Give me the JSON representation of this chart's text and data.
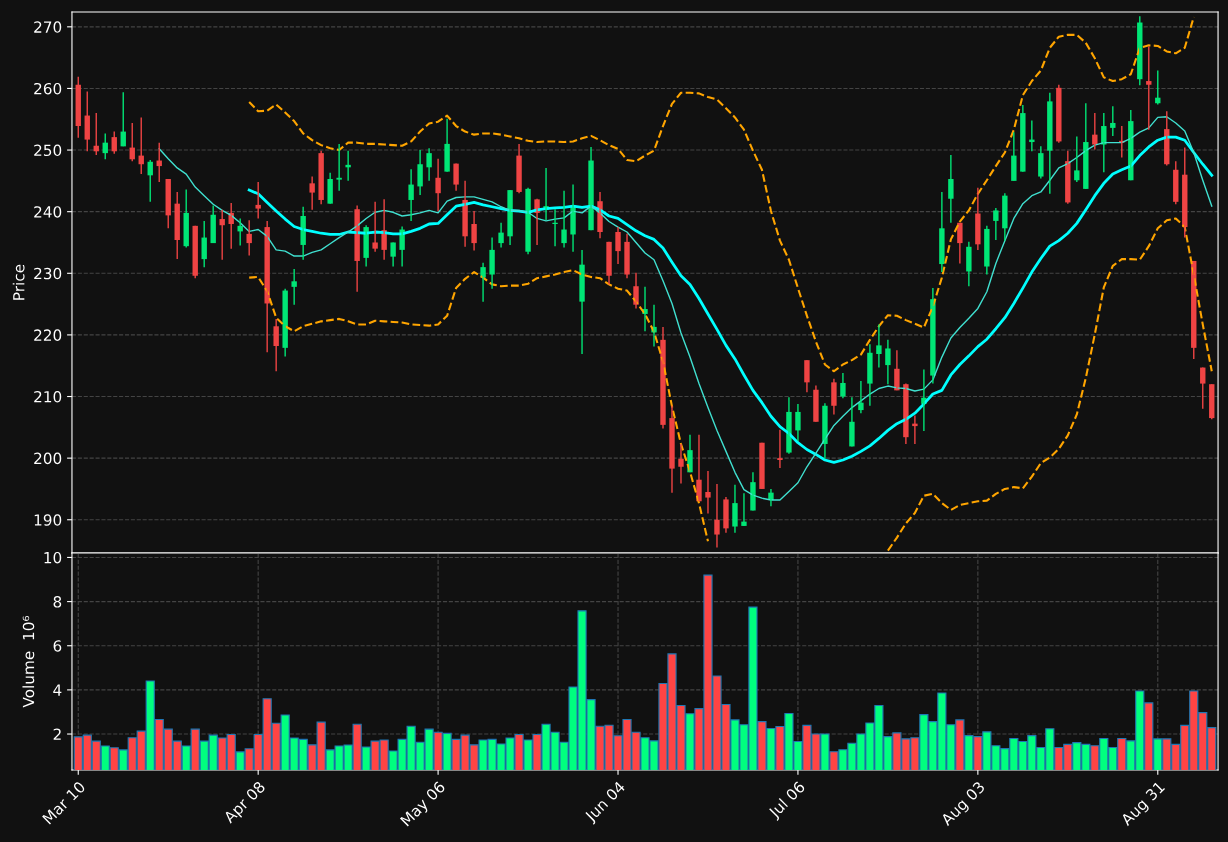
{
  "chart_data": [
    {
      "type": "candlestick",
      "ylabel": "Price",
      "ylim": [
        184.6,
        272.4
      ],
      "yticks": [
        190,
        200,
        210,
        220,
        230,
        240,
        250,
        260,
        270
      ],
      "grid": true,
      "tick_labels": "y",
      "ohlc": [
        [
          260.6,
          261.9,
          252.0,
          253.9
        ],
        [
          255.6,
          259.5,
          249.8,
          251.7
        ],
        [
          250.7,
          256.0,
          249.2,
          249.8
        ],
        [
          249.5,
          252.7,
          248.5,
          251.2
        ],
        [
          252.1,
          253.0,
          249.4,
          249.8
        ],
        [
          250.6,
          259.4,
          250.6,
          253.0
        ],
        [
          250.4,
          254.4,
          248.2,
          248.5
        ],
        [
          249.1,
          255.3,
          246.1,
          247.7
        ],
        [
          245.9,
          248.4,
          241.6,
          248.1
        ],
        [
          248.3,
          251.2,
          244.8,
          247.4
        ],
        [
          245.3,
          245.3,
          237.3,
          239.4
        ],
        [
          241.3,
          243.2,
          232.3,
          235.4
        ],
        [
          234.4,
          243.6,
          234.2,
          239.8
        ],
        [
          237.7,
          237.7,
          229.2,
          229.6
        ],
        [
          232.3,
          238.5,
          231.0,
          235.8
        ],
        [
          234.9,
          241.0,
          234.9,
          239.5
        ],
        [
          238.8,
          240.3,
          232.2,
          237.8
        ],
        [
          239.8,
          241.4,
          234.0,
          238.0
        ],
        [
          236.8,
          238.9,
          234.5,
          237.7
        ],
        [
          236.4,
          238.6,
          232.9,
          234.9
        ],
        [
          241.1,
          244.8,
          238.9,
          240.5
        ],
        [
          237.5,
          238.5,
          217.2,
          225.1
        ],
        [
          221.4,
          222.6,
          214.1,
          218.2
        ],
        [
          217.9,
          227.5,
          216.5,
          227.2
        ],
        [
          227.8,
          230.7,
          224.9,
          228.7
        ],
        [
          234.6,
          240.8,
          232.2,
          239.3
        ],
        [
          244.6,
          245.7,
          240.3,
          243.1
        ],
        [
          249.5,
          249.9,
          241.2,
          241.9
        ],
        [
          241.3,
          246.3,
          241.3,
          245.3
        ],
        [
          245.2,
          251.0,
          243.4,
          245.5
        ],
        [
          247.2,
          249.9,
          245.0,
          247.6
        ],
        [
          240.4,
          241.0,
          227.0,
          232.0
        ],
        [
          232.5,
          237.8,
          231.1,
          237.5
        ],
        [
          235.0,
          241.6,
          233.5,
          234.0
        ],
        [
          237.0,
          242.0,
          232.2,
          233.8
        ],
        [
          232.7,
          235.0,
          231.1,
          235.0
        ],
        [
          233.8,
          237.6,
          231.1,
          237.1
        ],
        [
          241.9,
          246.9,
          238.5,
          244.4
        ],
        [
          244.1,
          250.0,
          242.7,
          247.7
        ],
        [
          247.2,
          250.3,
          245.0,
          249.5
        ],
        [
          245.5,
          248.6,
          240.1,
          243.0
        ],
        [
          246.5,
          255.1,
          246.5,
          251.0
        ],
        [
          247.8,
          247.8,
          243.4,
          244.4
        ],
        [
          241.9,
          245.0,
          234.3,
          236.0
        ],
        [
          238.0,
          240.1,
          233.7,
          234.9
        ],
        [
          229.3,
          231.7,
          225.4,
          231.0
        ],
        [
          229.8,
          235.8,
          227.5,
          233.8
        ],
        [
          234.9,
          238.2,
          234.2,
          236.6
        ],
        [
          236.0,
          243.5,
          234.6,
          243.5
        ],
        [
          249.1,
          251.0,
          243.0,
          243.2
        ],
        [
          233.5,
          243.9,
          233.1,
          243.7
        ],
        [
          242.0,
          242.1,
          234.6,
          239.8
        ],
        [
          240.3,
          247.1,
          238.6,
          240.9
        ],
        [
          238.0,
          240.4,
          234.4,
          238.2
        ],
        [
          234.9,
          243.4,
          234.2,
          237.1
        ],
        [
          236.3,
          244.4,
          233.5,
          241.0
        ],
        [
          225.4,
          233.8,
          216.9,
          231.4
        ],
        [
          237.0,
          250.5,
          237.0,
          248.3
        ],
        [
          241.7,
          243.2,
          235.7,
          236.7
        ],
        [
          235.1,
          235.1,
          228.2,
          229.6
        ],
        [
          236.7,
          237.5,
          231.5,
          233.6
        ],
        [
          235.1,
          236.4,
          229.2,
          229.8
        ],
        [
          227.9,
          230.1,
          224.3,
          224.9
        ],
        [
          223.4,
          227.8,
          220.6,
          224.2
        ],
        [
          220.4,
          224.9,
          218.1,
          221.3
        ],
        [
          219.2,
          221.3,
          204.8,
          205.4
        ],
        [
          206.5,
          208.5,
          194.4,
          198.3
        ],
        [
          199.9,
          202.3,
          195.9,
          198.6
        ],
        [
          197.7,
          203.8,
          197.7,
          201.3
        ],
        [
          196.5,
          203.8,
          193.0,
          193.0
        ],
        [
          194.5,
          197.9,
          191.0,
          193.6
        ],
        [
          190.0,
          195.8,
          185.5,
          187.6
        ],
        [
          193.3,
          193.7,
          187.9,
          188.6
        ],
        [
          188.9,
          195.7,
          187.9,
          192.7
        ],
        [
          189.0,
          194.3,
          189.0,
          189.7
        ],
        [
          191.5,
          197.7,
          191.5,
          196.1
        ],
        [
          202.5,
          202.5,
          195.0,
          195.0
        ],
        [
          193.2,
          195.0,
          192.2,
          194.4
        ],
        [
          200.0,
          204.6,
          198.4,
          199.7
        ],
        [
          200.9,
          209.9,
          200.7,
          207.5
        ],
        [
          204.5,
          208.8,
          202.8,
          207.5
        ],
        [
          215.9,
          215.9,
          210.7,
          212.3
        ],
        [
          211.1,
          211.8,
          205.9,
          205.9
        ],
        [
          202.3,
          208.9,
          199.9,
          208.5
        ],
        [
          212.3,
          212.9,
          207.1,
          208.5
        ],
        [
          210.0,
          213.8,
          209.7,
          212.2
        ],
        [
          201.9,
          209.9,
          201.9,
          205.9
        ],
        [
          207.8,
          212.5,
          207.3,
          209.0
        ],
        [
          212.1,
          218.5,
          208.5,
          217.1
        ],
        [
          216.9,
          221.7,
          214.7,
          218.3
        ],
        [
          215.1,
          219.2,
          212.0,
          217.8
        ],
        [
          214.5,
          217.5,
          211.0,
          211.0
        ],
        [
          212.0,
          212.1,
          202.3,
          203.4
        ],
        [
          205.6,
          206.9,
          202.3,
          205.2
        ],
        [
          208.8,
          214.4,
          204.4,
          209.8
        ],
        [
          213.4,
          227.6,
          212.1,
          225.8
        ],
        [
          231.5,
          243.2,
          230.2,
          237.3
        ],
        [
          242.1,
          249.2,
          238.2,
          245.3
        ],
        [
          238.2,
          238.2,
          231.6,
          234.9
        ],
        [
          230.3,
          235.1,
          227.9,
          234.3
        ],
        [
          239.7,
          243.9,
          233.8,
          234.7
        ],
        [
          231.1,
          237.7,
          229.8,
          237.2
        ],
        [
          238.5,
          240.6,
          235.4,
          240.2
        ],
        [
          237.3,
          243.0,
          235.3,
          242.6
        ],
        [
          245.0,
          252.9,
          245.0,
          249.1
        ],
        [
          246.5,
          257.3,
          246.5,
          256.0
        ],
        [
          251.3,
          254.8,
          249.8,
          251.7
        ],
        [
          245.7,
          250.6,
          245.4,
          249.5
        ],
        [
          249.9,
          259.3,
          242.9,
          257.9
        ],
        [
          260.1,
          260.6,
          251.2,
          251.4
        ],
        [
          248.2,
          249.9,
          241.3,
          241.5
        ],
        [
          245.1,
          252.2,
          244.8,
          246.7
        ],
        [
          243.7,
          257.6,
          243.7,
          251.3
        ],
        [
          252.5,
          256.0,
          250.1,
          250.9
        ],
        [
          250.9,
          256.0,
          246.4,
          253.9
        ],
        [
          253.6,
          257.1,
          252.3,
          254.4
        ],
        [
          251.5,
          253.9,
          248.8,
          251.2
        ],
        [
          245.1,
          256.5,
          245.1,
          254.7
        ],
        [
          261.5,
          271.7,
          260.5,
          270.7
        ],
        [
          261.2,
          266.8,
          253.3,
          260.6
        ],
        [
          257.6,
          262.9,
          257.4,
          258.5
        ],
        [
          253.4,
          256.3,
          247.5,
          247.7
        ],
        [
          246.8,
          248.2,
          241.2,
          241.6
        ],
        [
          246.0,
          250.4,
          235.8,
          237.5
        ],
        [
          232.0,
          232.0,
          216.1,
          217.9
        ],
        [
          214.7,
          214.7,
          208.0,
          212.1
        ],
        [
          212.0,
          212.0,
          206.3,
          206.5
        ]
      ],
      "colors": [
        "#ef4444",
        "#ef4444",
        "#ef4444",
        "#00e676",
        "#ef4444",
        "#00e676",
        "#ef4444",
        "#ef4444",
        "#00e676",
        "#ef4444",
        "#ef4444",
        "#ef4444",
        "#00e676",
        "#ef4444",
        "#00e676",
        "#00e676",
        "#ef4444",
        "#ef4444",
        "#00e676",
        "#ef4444",
        "#ef4444",
        "#ef4444",
        "#ef4444",
        "#00e676",
        "#00e676",
        "#00e676",
        "#ef4444",
        "#ef4444",
        "#00e676",
        "#00e676",
        "#00e676",
        "#ef4444",
        "#00e676",
        "#ef4444",
        "#ef4444",
        "#00e676",
        "#00e676",
        "#00e676",
        "#00e676",
        "#00e676",
        "#ef4444",
        "#00e676",
        "#ef4444",
        "#ef4444",
        "#ef4444",
        "#00e676",
        "#00e676",
        "#00e676",
        "#00e676",
        "#ef4444",
        "#00e676",
        "#ef4444",
        "#00e676",
        "#00e676",
        "#00e676",
        "#00e676",
        "#00e676",
        "#00e676",
        "#ef4444",
        "#ef4444",
        "#ef4444",
        "#ef4444",
        "#ef4444",
        "#00e676",
        "#00e676",
        "#ef4444",
        "#ef4444",
        "#ef4444",
        "#00e676",
        "#ef4444",
        "#ef4444",
        "#ef4444",
        "#ef4444",
        "#00e676",
        "#00e676",
        "#00e676",
        "#ef4444",
        "#00e676",
        "#ef4444",
        "#00e676",
        "#00e676",
        "#ef4444",
        "#ef4444",
        "#00e676",
        "#ef4444",
        "#00e676",
        "#00e676",
        "#00e676",
        "#00e676",
        "#00e676",
        "#00e676",
        "#ef4444",
        "#ef4444",
        "#ef4444",
        "#00e676",
        "#00e676",
        "#00e676",
        "#00e676",
        "#ef4444",
        "#00e676",
        "#ef4444",
        "#00e676",
        "#00e676",
        "#00e676",
        "#00e676",
        "#00e676",
        "#00e676",
        "#00e676",
        "#00e676",
        "#ef4444",
        "#ef4444",
        "#00e676",
        "#00e676",
        "#ef4444",
        "#00e676",
        "#00e676",
        "#ef4444",
        "#00e676",
        "#00e676",
        "#ef4444",
        "#00e676",
        "#ef4444",
        "#ef4444",
        "#ef4444",
        "#ef4444",
        "#ef4444",
        "#ef4444"
      ],
      "series": [
        {
          "type": "line",
          "color": "#00ffff",
          "line_style": "solid",
          "values": [
            null,
            null,
            null,
            null,
            null,
            null,
            null,
            null,
            null,
            null,
            null,
            null,
            null,
            null,
            null,
            null,
            null,
            null,
            null,
            243.5,
            242.9,
            241.5,
            240.1,
            238.8,
            237.6,
            237.1,
            236.8,
            236.5,
            236.3,
            236.3,
            236.7,
            236.6,
            236.5,
            236.7,
            236.6,
            236.4,
            236.4,
            236.8,
            237.3,
            238.0,
            238.1,
            239.5,
            240.9,
            241.2,
            241.5,
            241.1,
            240.8,
            240.5,
            240.2,
            240.1,
            239.9,
            240.3,
            240.5,
            240.6,
            240.7,
            240.9,
            240.7,
            240.9,
            240.3,
            239.3,
            238.9,
            237.9,
            236.9,
            236.1,
            235.5,
            234.1,
            231.8,
            229.6,
            228.2,
            225.9,
            223.4,
            220.9,
            218.3,
            216.1,
            213.5,
            211.0,
            209.0,
            206.8,
            205.1,
            204.0,
            202.5,
            201.4,
            200.6,
            199.7,
            199.3,
            199.7,
            200.3,
            201.1,
            202.0,
            203.2,
            204.5,
            205.6,
            206.3,
            207.3,
            208.8,
            210.4,
            211.0,
            213.5,
            215.2,
            216.6,
            218.1,
            219.3,
            221.0,
            222.8,
            225.1,
            227.6,
            230.2,
            232.4,
            234.4,
            235.3,
            236.5,
            238.1,
            240.3,
            242.6,
            244.6,
            246.1,
            246.8,
            247.4,
            249.1,
            250.5,
            251.6,
            252.1,
            252.1,
            251.6,
            249.6,
            247.7,
            245.9
          ]
        },
        {
          "type": "line",
          "color": "#40e0d0",
          "line_style": "solid",
          "values": [
            null,
            null,
            null,
            null,
            null,
            null,
            null,
            null,
            null,
            250.2,
            248.6,
            247.1,
            246.1,
            244.0,
            242.6,
            241.2,
            240.2,
            239.4,
            238.2,
            236.8,
            237.1,
            236.0,
            233.8,
            233.6,
            232.8,
            232.8,
            233.4,
            233.8,
            234.8,
            235.8,
            236.7,
            237.7,
            238.9,
            239.9,
            240.2,
            239.9,
            239.3,
            239.5,
            239.8,
            240.2,
            239.8,
            241.7,
            242.3,
            242.4,
            242.4,
            242.0,
            241.6,
            240.8,
            240.2,
            240.2,
            239.9,
            238.9,
            238.5,
            238.8,
            239.0,
            240.1,
            239.8,
            240.9,
            239.8,
            238.4,
            237.5,
            236.7,
            235.0,
            233.3,
            232.2,
            228.8,
            225.1,
            220.3,
            216.4,
            212.1,
            208.2,
            204.5,
            201.1,
            197.7,
            194.9,
            194.0,
            193.5,
            193.2,
            193.2,
            194.6,
            196.0,
            198.6,
            200.8,
            203.1,
            205.3,
            206.8,
            208.2,
            209.3,
            210.4,
            211.3,
            211.7,
            211.4,
            211.3,
            210.9,
            211.2,
            212.7,
            216.4,
            219.5,
            221.2,
            222.7,
            224.3,
            227.0,
            231.6,
            235.3,
            238.9,
            241.3,
            242.6,
            243.2,
            245.1,
            247.1,
            247.8,
            248.8,
            249.9,
            250.8,
            251.2,
            251.2,
            251.2,
            251.9,
            252.9,
            253.6,
            255.3,
            255.4,
            254.4,
            253.1,
            249.6,
            245.1,
            240.9
          ]
        },
        {
          "type": "line",
          "color": "#ffa500",
          "line_style": "dashed",
          "values": [
            null,
            null,
            null,
            null,
            null,
            null,
            null,
            null,
            null,
            null,
            null,
            null,
            null,
            null,
            null,
            null,
            null,
            null,
            null,
            257.8,
            256.3,
            256.4,
            257.4,
            256.1,
            254.7,
            252.7,
            251.6,
            250.8,
            250.3,
            250.0,
            251.2,
            251.2,
            251.0,
            251.0,
            250.9,
            250.8,
            250.7,
            251.4,
            253.0,
            254.3,
            254.6,
            255.6,
            253.9,
            253.0,
            252.5,
            252.7,
            252.7,
            252.5,
            252.2,
            251.9,
            251.5,
            251.3,
            251.4,
            251.4,
            251.3,
            251.4,
            251.9,
            252.3,
            251.6,
            250.8,
            250.2,
            248.4,
            248.2,
            249.1,
            249.9,
            253.9,
            257.5,
            259.3,
            259.3,
            259.2,
            258.6,
            258.2,
            256.8,
            255.3,
            253.3,
            249.9,
            246.8,
            240.1,
            235.3,
            232.2,
            227.6,
            223.1,
            218.9,
            215.2,
            214.1,
            215.2,
            215.9,
            216.8,
            219.2,
            221.4,
            223.2,
            223.1,
            222.4,
            221.8,
            221.2,
            224.6,
            229.3,
            235.5,
            238.4,
            240.2,
            242.9,
            245.1,
            247.4,
            249.6,
            253.3,
            258.9,
            261.2,
            262.9,
            266.6,
            268.4,
            268.7,
            268.7,
            267.4,
            264.9,
            261.8,
            261.2,
            261.5,
            262.3,
            266.6,
            267.0,
            266.9,
            266.0,
            265.7,
            266.6,
            271.6,
            null,
            null
          ]
        },
        {
          "type": "line",
          "color": "#ffa500",
          "line_style": "dashed",
          "values": [
            null,
            null,
            null,
            null,
            null,
            null,
            null,
            null,
            null,
            null,
            null,
            null,
            null,
            null,
            null,
            null,
            null,
            null,
            null,
            229.3,
            229.4,
            227.1,
            222.8,
            221.4,
            220.6,
            221.4,
            221.8,
            222.2,
            222.4,
            222.6,
            222.2,
            221.7,
            221.7,
            222.3,
            222.2,
            222.1,
            222.0,
            221.7,
            221.6,
            221.5,
            221.7,
            223.1,
            227.6,
            229.1,
            230.2,
            229.3,
            228.2,
            227.9,
            228.0,
            228.0,
            228.3,
            229.2,
            229.5,
            229.8,
            230.2,
            230.5,
            229.8,
            229.4,
            229.2,
            228.2,
            227.5,
            227.2,
            225.4,
            223.4,
            220.5,
            215.7,
            208.4,
            202.3,
            197.8,
            192.7,
            186.5,
            null,
            null,
            null,
            null,
            null,
            null,
            null,
            null,
            null,
            null,
            null,
            null,
            null,
            null,
            null,
            null,
            null,
            null,
            null,
            185.0,
            187.1,
            189.4,
            191.1,
            193.9,
            194.2,
            192.7,
            191.6,
            192.4,
            192.7,
            193.0,
            193.1,
            194.2,
            195.0,
            195.3,
            195.1,
            197.0,
            199.2,
            200.1,
            201.5,
            203.7,
            207.1,
            213.0,
            220.1,
            227.7,
            231.2,
            232.3,
            232.3,
            232.2,
            234.4,
            237.3,
            238.6,
            238.9,
            237.5,
            229.8,
            221.7,
            214.1
          ]
        }
      ]
    },
    {
      "type": "bar",
      "ylabel": "Volume  10⁶",
      "ylim": [
        0.37,
        10.2
      ],
      "yticks": [
        2,
        4,
        6,
        8,
        10
      ],
      "grid": true,
      "categories": [
        "Mar 10",
        null,
        null,
        null,
        null,
        null,
        null,
        null,
        null,
        null,
        null,
        null,
        null,
        null,
        null,
        null,
        null,
        null,
        null,
        null,
        "Apr 08",
        null,
        null,
        null,
        null,
        null,
        null,
        null,
        null,
        null,
        null,
        null,
        null,
        null,
        null,
        null,
        null,
        null,
        null,
        null,
        "May 06",
        null,
        null,
        null,
        null,
        null,
        null,
        null,
        null,
        null,
        null,
        null,
        null,
        null,
        null,
        null,
        null,
        null,
        null,
        null,
        "Jun 04",
        null,
        null,
        null,
        null,
        null,
        null,
        null,
        null,
        null,
        null,
        null,
        null,
        null,
        null,
        null,
        null,
        null,
        null,
        null,
        "Jul 06",
        null,
        null,
        null,
        null,
        null,
        null,
        null,
        null,
        null,
        null,
        null,
        null,
        null,
        null,
        null,
        null,
        null,
        null,
        null,
        "Aug 03",
        null,
        null,
        null,
        null,
        null,
        null,
        null,
        null,
        null,
        null,
        null,
        null,
        null,
        null,
        null,
        null,
        null,
        null,
        null,
        "Aug 31",
        null,
        null,
        null,
        null,
        null,
        null
      ],
      "values": [
        1.87,
        1.95,
        1.68,
        1.46,
        1.38,
        1.28,
        1.83,
        2.13,
        4.4,
        2.66,
        2.22,
        1.68,
        1.46,
        2.22,
        1.68,
        1.95,
        1.82,
        1.98,
        1.19,
        1.33,
        1.98,
        3.6,
        2.49,
        2.86,
        1.82,
        1.76,
        1.51,
        2.54,
        1.28,
        1.46,
        1.5,
        2.44,
        1.41,
        1.68,
        1.73,
        1.23,
        1.76,
        2.35,
        1.63,
        2.22,
        2.08,
        2.03,
        1.76,
        1.95,
        1.51,
        1.73,
        1.76,
        1.55,
        1.82,
        1.98,
        1.73,
        1.98,
        2.44,
        2.08,
        1.63,
        4.13,
        7.58,
        3.56,
        2.35,
        2.4,
        1.92,
        2.66,
        2.08,
        1.83,
        1.69,
        4.29,
        5.63,
        3.29,
        2.92,
        3.15,
        9.2,
        4.63,
        3.34,
        2.64,
        2.42,
        7.75,
        2.56,
        2.25,
        2.34,
        2.93,
        1.66,
        2.39,
        2.0,
        2.0,
        1.2,
        1.29,
        1.58,
        2.0,
        2.5,
        3.29,
        1.88,
        2.05,
        1.78,
        1.83,
        2.88,
        2.56,
        3.86,
        2.42,
        2.64,
        1.93,
        1.88,
        2.1,
        1.47,
        1.34,
        1.8,
        1.66,
        1.93,
        1.39,
        2.24,
        1.39,
        1.53,
        1.61,
        1.53,
        1.47,
        1.8,
        1.39,
        1.8,
        1.69,
        3.95,
        3.41,
        1.78,
        1.78,
        1.53,
        2.39,
        3.95,
        2.97,
        2.29
      ],
      "colors": [
        "#ff4444",
        "#ff4444",
        "#ff4444",
        "#00ff7f",
        "#ff4444",
        "#00ff7f",
        "#ff4444",
        "#ff4444",
        "#00ff7f",
        "#ff4444",
        "#ff4444",
        "#ff4444",
        "#00ff7f",
        "#ff4444",
        "#00ff7f",
        "#00ff7f",
        "#ff4444",
        "#ff4444",
        "#00ff7f",
        "#ff4444",
        "#ff4444",
        "#ff4444",
        "#ff4444",
        "#00ff7f",
        "#00ff7f",
        "#00ff7f",
        "#ff4444",
        "#ff4444",
        "#00ff7f",
        "#00ff7f",
        "#00ff7f",
        "#ff4444",
        "#00ff7f",
        "#ff4444",
        "#ff4444",
        "#00ff7f",
        "#00ff7f",
        "#00ff7f",
        "#00ff7f",
        "#00ff7f",
        "#ff4444",
        "#00ff7f",
        "#ff4444",
        "#ff4444",
        "#ff4444",
        "#00ff7f",
        "#00ff7f",
        "#00ff7f",
        "#00ff7f",
        "#ff4444",
        "#00ff7f",
        "#ff4444",
        "#00ff7f",
        "#00ff7f",
        "#00ff7f",
        "#00ff7f",
        "#00ff7f",
        "#00ff7f",
        "#ff4444",
        "#ff4444",
        "#ff4444",
        "#ff4444",
        "#ff4444",
        "#00ff7f",
        "#00ff7f",
        "#ff4444",
        "#ff4444",
        "#ff4444",
        "#00ff7f",
        "#ff4444",
        "#ff4444",
        "#ff4444",
        "#ff4444",
        "#00ff7f",
        "#00ff7f",
        "#00ff7f",
        "#ff4444",
        "#00ff7f",
        "#ff4444",
        "#00ff7f",
        "#00ff7f",
        "#ff4444",
        "#ff4444",
        "#00ff7f",
        "#ff4444",
        "#00ff7f",
        "#00ff7f",
        "#00ff7f",
        "#00ff7f",
        "#00ff7f",
        "#00ff7f",
        "#ff4444",
        "#ff4444",
        "#ff4444",
        "#00ff7f",
        "#00ff7f",
        "#00ff7f",
        "#00ff7f",
        "#ff4444",
        "#00ff7f",
        "#ff4444",
        "#00ff7f",
        "#00ff7f",
        "#00ff7f",
        "#00ff7f",
        "#00ff7f",
        "#00ff7f",
        "#00ff7f",
        "#00ff7f",
        "#ff4444",
        "#ff4444",
        "#00ff7f",
        "#00ff7f",
        "#ff4444",
        "#00ff7f",
        "#00ff7f",
        "#ff4444",
        "#00ff7f",
        "#00ff7f",
        "#ff4444",
        "#00ff7f",
        "#ff4444",
        "#ff4444",
        "#ff4444",
        "#ff4444",
        "#ff4444",
        "#ff4444"
      ]
    }
  ]
}
